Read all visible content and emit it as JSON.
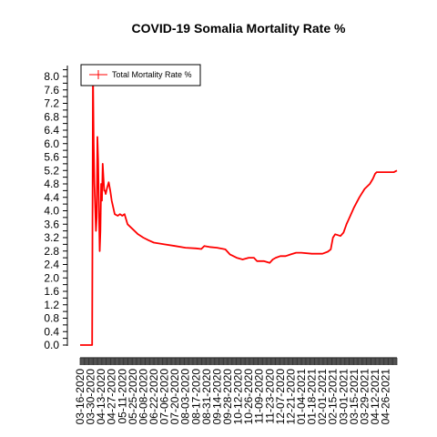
{
  "chart_data": {
    "type": "line",
    "title": "COVID-19 Somalia Mortality Rate %",
    "xlabel": "",
    "ylabel": "",
    "ylim": [
      0,
      8.2
    ],
    "x_range": [
      "2020-03-16",
      "2021-05-11"
    ],
    "yticks": [
      "0.0",
      "0.4",
      "0.8",
      "1.2",
      "1.6",
      "2.0",
      "2.4",
      "2.8",
      "3.2",
      "3.6",
      "4.0",
      "4.4",
      "4.8",
      "5.2",
      "5.6",
      "6.0",
      "6.4",
      "6.8",
      "7.2",
      "7.6",
      "8.0"
    ],
    "xtick_labels": [
      "03-16-2020",
      "03-30-2020",
      "04-13-2020",
      "04-27-2020",
      "05-11-2020",
      "05-25-2020",
      "06-08-2020",
      "06-22-2020",
      "07-06-2020",
      "07-20-2020",
      "08-03-2020",
      "08-17-2020",
      "08-31-2020",
      "09-14-2020",
      "09-28-2020",
      "10-12-2020",
      "10-26-2020",
      "11-09-2020",
      "11-23-2020",
      "12-07-2020",
      "12-21-2020",
      "01-04-2021",
      "01-18-2021",
      "02-01-2021",
      "02-15-2021",
      "03-01-2021",
      "03-15-2021",
      "03-29-2021",
      "04-12-2021",
      "04-26-2021"
    ],
    "grid": false,
    "legend_position": "top-left",
    "series": [
      {
        "name": "Total Mortality Rate %",
        "color": "#ff0000",
        "points": [
          [
            "2020-03-16",
            0.0
          ],
          [
            "2020-04-01",
            0.0
          ],
          [
            "2020-04-02",
            8.2
          ],
          [
            "2020-04-03",
            6.0
          ],
          [
            "2020-04-04",
            4.8
          ],
          [
            "2020-04-06",
            3.4
          ],
          [
            "2020-04-07",
            3.8
          ],
          [
            "2020-04-08",
            6.2
          ],
          [
            "2020-04-09",
            5.5
          ],
          [
            "2020-04-10",
            4.0
          ],
          [
            "2020-04-11",
            2.8
          ],
          [
            "2020-04-12",
            3.4
          ],
          [
            "2020-04-13",
            4.8
          ],
          [
            "2020-04-14",
            4.3
          ],
          [
            "2020-04-15",
            5.4
          ],
          [
            "2020-04-16",
            5.0
          ],
          [
            "2020-04-17",
            4.6
          ],
          [
            "2020-04-18",
            4.6
          ],
          [
            "2020-04-19",
            4.5
          ],
          [
            "2020-04-21",
            4.7
          ],
          [
            "2020-04-23",
            4.85
          ],
          [
            "2020-04-25",
            4.6
          ],
          [
            "2020-04-27",
            4.3
          ],
          [
            "2020-05-01",
            3.9
          ],
          [
            "2020-05-05",
            3.85
          ],
          [
            "2020-05-08",
            3.9
          ],
          [
            "2020-05-11",
            3.85
          ],
          [
            "2020-05-14",
            3.9
          ],
          [
            "2020-05-18",
            3.6
          ],
          [
            "2020-05-25",
            3.45
          ],
          [
            "2020-06-01",
            3.3
          ],
          [
            "2020-06-08",
            3.2
          ],
          [
            "2020-06-15",
            3.12
          ],
          [
            "2020-06-22",
            3.05
          ],
          [
            "2020-07-06",
            3.0
          ],
          [
            "2020-07-20",
            2.95
          ],
          [
            "2020-08-03",
            2.9
          ],
          [
            "2020-08-17",
            2.88
          ],
          [
            "2020-08-24",
            2.86
          ],
          [
            "2020-08-28",
            2.95
          ],
          [
            "2020-09-04",
            2.92
          ],
          [
            "2020-09-14",
            2.9
          ],
          [
            "2020-09-25",
            2.85
          ],
          [
            "2020-10-01",
            2.7
          ],
          [
            "2020-10-10",
            2.6
          ],
          [
            "2020-10-18",
            2.55
          ],
          [
            "2020-10-26",
            2.6
          ],
          [
            "2020-11-02",
            2.6
          ],
          [
            "2020-11-06",
            2.5
          ],
          [
            "2020-11-15",
            2.5
          ],
          [
            "2020-11-23",
            2.45
          ],
          [
            "2020-11-27",
            2.55
          ],
          [
            "2020-12-01",
            2.6
          ],
          [
            "2020-12-07",
            2.65
          ],
          [
            "2020-12-14",
            2.65
          ],
          [
            "2020-12-21",
            2.7
          ],
          [
            "2020-12-28",
            2.75
          ],
          [
            "2021-01-04",
            2.75
          ],
          [
            "2021-01-18",
            2.72
          ],
          [
            "2021-02-01",
            2.72
          ],
          [
            "2021-02-08",
            2.78
          ],
          [
            "2021-02-12",
            2.85
          ],
          [
            "2021-02-15",
            3.2
          ],
          [
            "2021-02-18",
            3.3
          ],
          [
            "2021-02-25",
            3.25
          ],
          [
            "2021-03-01",
            3.35
          ],
          [
            "2021-03-05",
            3.6
          ],
          [
            "2021-03-10",
            3.85
          ],
          [
            "2021-03-15",
            4.1
          ],
          [
            "2021-03-22",
            4.4
          ],
          [
            "2021-03-29",
            4.65
          ],
          [
            "2021-04-05",
            4.8
          ],
          [
            "2021-04-09",
            4.95
          ],
          [
            "2021-04-12",
            5.1
          ],
          [
            "2021-04-14",
            5.15
          ],
          [
            "2021-04-19",
            5.15
          ],
          [
            "2021-04-26",
            5.15
          ],
          [
            "2021-05-03",
            5.15
          ],
          [
            "2021-05-07",
            5.15
          ],
          [
            "2021-05-11",
            5.2
          ]
        ]
      }
    ]
  }
}
